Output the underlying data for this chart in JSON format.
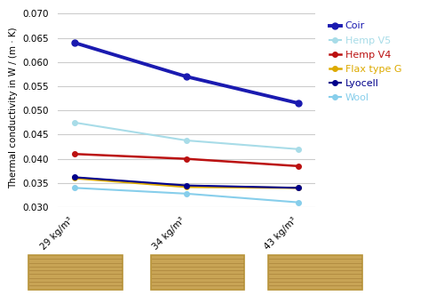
{
  "x_labels": [
    "29 kg/m³",
    "34 kg/m³",
    "43 kg/m³"
  ],
  "series": [
    {
      "name": "Coir",
      "values": [
        0.064,
        0.057,
        0.0515
      ],
      "color": "#1a1ab0",
      "linewidth": 2.8,
      "marker": "o",
      "markersize": 5
    },
    {
      "name": "Hemp V5",
      "values": [
        0.0475,
        0.0438,
        0.042
      ],
      "color": "#a8dce8",
      "linewidth": 1.5,
      "marker": "o",
      "markersize": 4
    },
    {
      "name": "Hemp V4",
      "values": [
        0.041,
        0.04,
        0.0385
      ],
      "color": "#bb1111",
      "linewidth": 1.8,
      "marker": "o",
      "markersize": 4
    },
    {
      "name": "Flax type G",
      "values": [
        0.036,
        0.0342,
        0.034
      ],
      "color": "#ddaa00",
      "linewidth": 1.8,
      "marker": "o",
      "markersize": 4
    },
    {
      "name": "Lyocell",
      "values": [
        0.0362,
        0.0345,
        0.034
      ],
      "color": "#00008b",
      "linewidth": 1.5,
      "marker": "o",
      "markersize": 4
    },
    {
      "name": "Wool",
      "values": [
        0.034,
        0.0328,
        0.031
      ],
      "color": "#87ceeb",
      "linewidth": 1.5,
      "marker": "o",
      "markersize": 4
    }
  ],
  "ylabel": "Thermal conductivity in W / (m · K)",
  "ylim": [
    0.03,
    0.071
  ],
  "yticks": [
    0.03,
    0.035,
    0.04,
    0.045,
    0.05,
    0.055,
    0.06,
    0.065,
    0.07
  ],
  "grid_color": "#cccccc",
  "bale_face": "#c8a455",
  "bale_edge": "#b8943a",
  "bale_line": "#a07830"
}
